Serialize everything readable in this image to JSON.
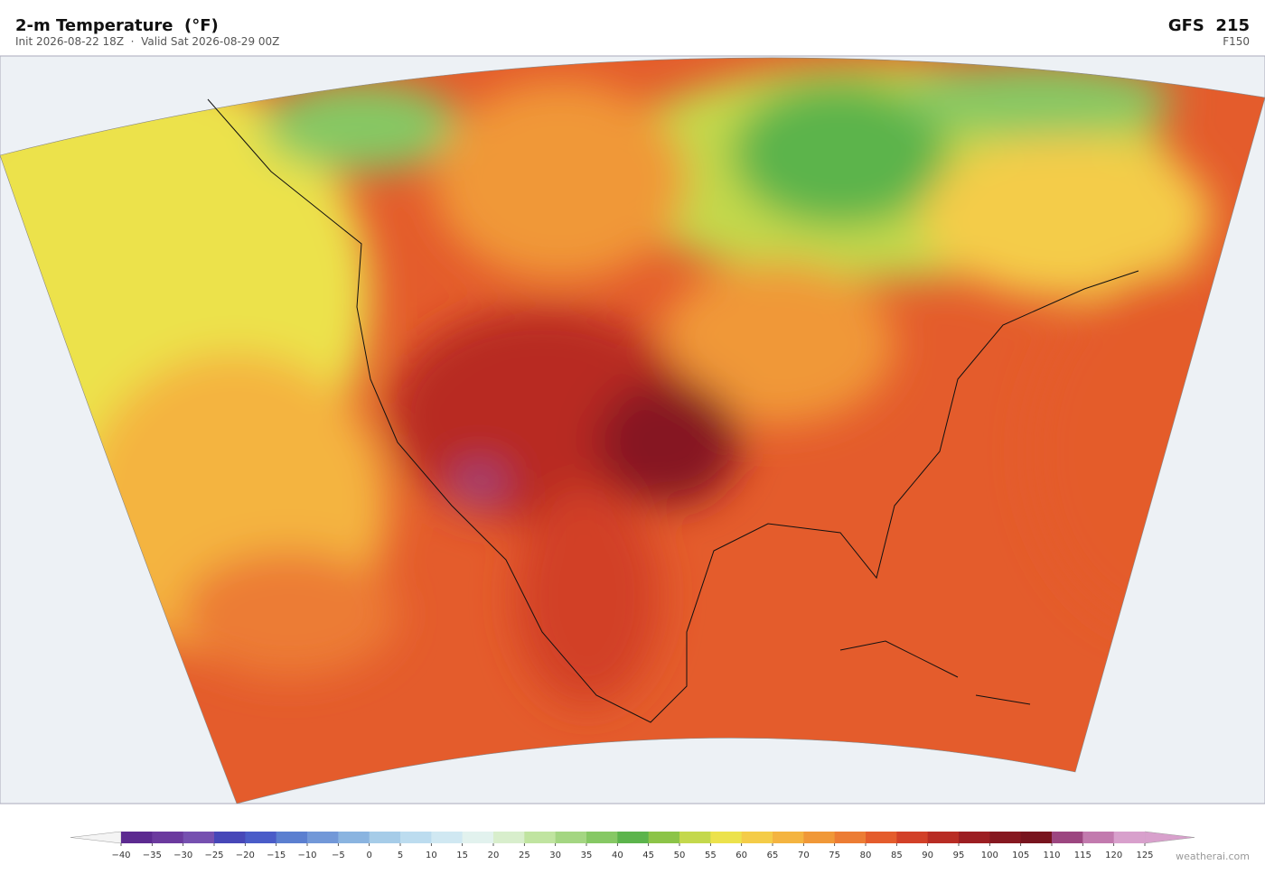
{
  "header": {
    "title": "2-m Temperature  (°F)",
    "subtitle": "Init 2026-08-22 18Z  ·  Valid Sat 2026-08-29 00Z",
    "model": "GFS  215",
    "forecast_hour": "F150"
  },
  "colorbar": {
    "ticks": [
      {
        "value": -40,
        "label": "−40"
      },
      {
        "value": -35,
        "label": "−35"
      },
      {
        "value": -30,
        "label": "−30"
      },
      {
        "value": -25,
        "label": "−25"
      },
      {
        "value": -20,
        "label": "−20"
      },
      {
        "value": -15,
        "label": "−15"
      },
      {
        "value": -10,
        "label": "−10"
      },
      {
        "value": -5,
        "label": "−5"
      },
      0,
      5,
      10,
      15,
      20,
      25,
      30,
      35,
      40,
      45,
      50,
      55,
      60,
      65,
      70,
      75,
      80,
      85,
      90,
      95,
      100,
      105,
      110,
      115,
      120,
      125
    ],
    "colors": [
      "#5c2a90",
      "#6b3a9e",
      "#7650b0",
      "#4747b8",
      "#4a5cc8",
      "#5b7fd0",
      "#7298d8",
      "#8ab4e0",
      "#a6cce8",
      "#bcdcef",
      "#d0e8f2",
      "#e2f2ee",
      "#d8eecc",
      "#c0e4a0",
      "#a4d682",
      "#86c864",
      "#5cb44c",
      "#8cc448",
      "#c4d84c",
      "#ece24c",
      "#f4cc48",
      "#f4b440",
      "#f09838",
      "#ec7c34",
      "#e45c2c",
      "#d24028",
      "#b82c24",
      "#9c1e22",
      "#861820",
      "#78141e",
      "#9c4680",
      "#c27aae",
      "#d8a0cc"
    ],
    "under_color": "#f4f4f4",
    "over_color": "#d8a0cc"
  },
  "credit": "weatherai.com"
}
